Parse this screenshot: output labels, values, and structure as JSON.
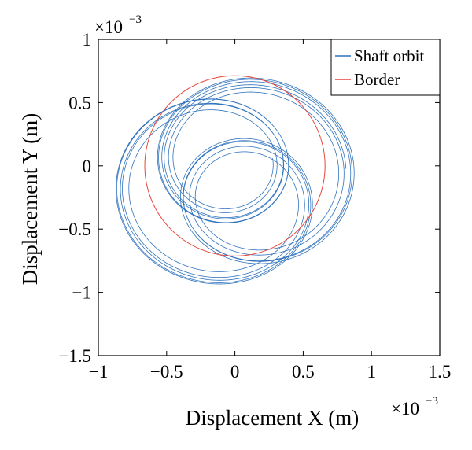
{
  "chart_data": {
    "type": "line",
    "xlabel": "Displacement X (m)",
    "ylabel": "Displacement Y (m)",
    "xlim": [
      -1,
      1.5
    ],
    "ylim": [
      -1.5,
      1
    ],
    "axis_multiplier": {
      "base": "×10",
      "exponent": "−3"
    },
    "xticks": [
      -1,
      -0.5,
      0,
      0.5,
      1,
      1.5
    ],
    "xtick_labels": [
      "−1",
      "−0.5",
      "0",
      "0.5",
      "1",
      "1.5"
    ],
    "yticks": [
      -1.5,
      -1,
      -0.5,
      0,
      0.5,
      1
    ],
    "ytick_labels": [
      "−1.5",
      "−1",
      "−0.5",
      "0",
      "0.5",
      "1"
    ],
    "grid": false,
    "legend_position": "top-right",
    "series": [
      {
        "name": "Shaft orbit",
        "color": "#2f72bd",
        "kind": "trochoid",
        "loop_count": 3,
        "loop_center_radius": 0.28,
        "loop_radius": 0.55,
        "loop_radius_variation": 0.06,
        "turns": 16
      },
      {
        "name": "Border",
        "color": "#e8453c",
        "kind": "circle",
        "center": [
          0,
          0
        ],
        "radius": 0.66
      }
    ]
  }
}
